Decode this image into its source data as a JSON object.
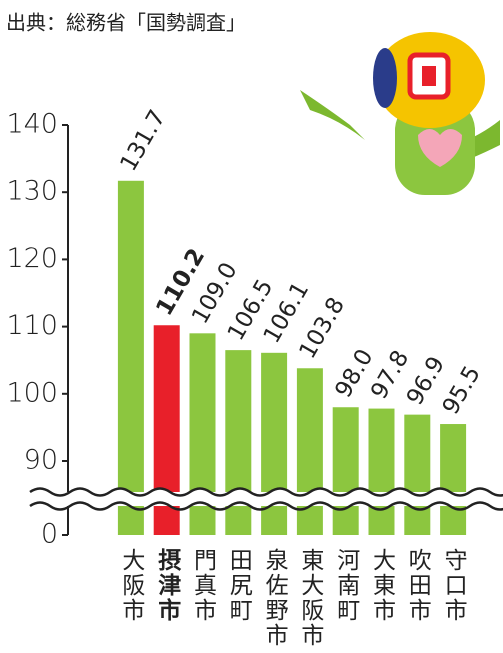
{
  "source": "出典：総務省「国勢調査」",
  "chart_data": {
    "type": "bar",
    "categories": [
      "大阪市",
      "摂津市",
      "門真市",
      "田尻町",
      "泉佐野市",
      "東大阪市",
      "河南町",
      "大東市",
      "吹田市",
      "守口市"
    ],
    "values": [
      131.7,
      110.2,
      109.0,
      106.5,
      106.1,
      103.8,
      98.0,
      97.8,
      96.9,
      95.5
    ],
    "value_labels": [
      "131.7",
      "110.2",
      "109.0",
      "106.5",
      "106.1",
      "103.8",
      "98.0",
      "97.8",
      "96.9",
      "95.5"
    ],
    "colors": [
      "#8cc63f",
      "#e8202a",
      "#8cc63f",
      "#8cc63f",
      "#8cc63f",
      "#8cc63f",
      "#8cc63f",
      "#8cc63f",
      "#8cc63f",
      "#8cc63f"
    ],
    "bold": [
      false,
      true,
      false,
      false,
      false,
      false,
      false,
      false,
      false,
      false
    ],
    "ylim": [
      0,
      140
    ],
    "yticks": [
      0,
      90,
      100,
      110,
      120,
      130,
      140
    ],
    "axis_break": true
  }
}
